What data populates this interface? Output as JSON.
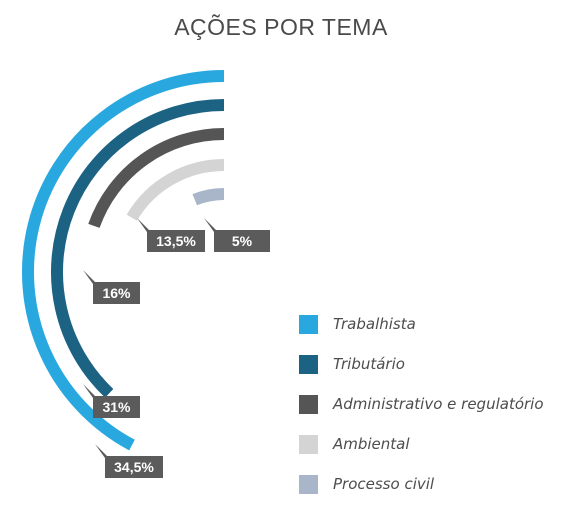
{
  "chart_data": {
    "type": "radial-bar",
    "title": "AÇÕES POR TEMA",
    "series": [
      {
        "name": "Trabalhista",
        "value": 34.5,
        "label": "34,5%",
        "color": "#29a8e0"
      },
      {
        "name": "Tributário",
        "value": 31,
        "label": "31%",
        "color": "#1c6383"
      },
      {
        "name": "Administrativo e regulatório",
        "value": 16,
        "label": "16%",
        "color": "#555555"
      },
      {
        "name": "Ambiental",
        "value": 13.5,
        "label": "13,5%",
        "color": "#d4d4d4"
      },
      {
        "name": "Processo civil",
        "value": 5,
        "label": "5%",
        "color": "#a9b6c9"
      }
    ],
    "label_box_color": "#5b5b5b"
  }
}
